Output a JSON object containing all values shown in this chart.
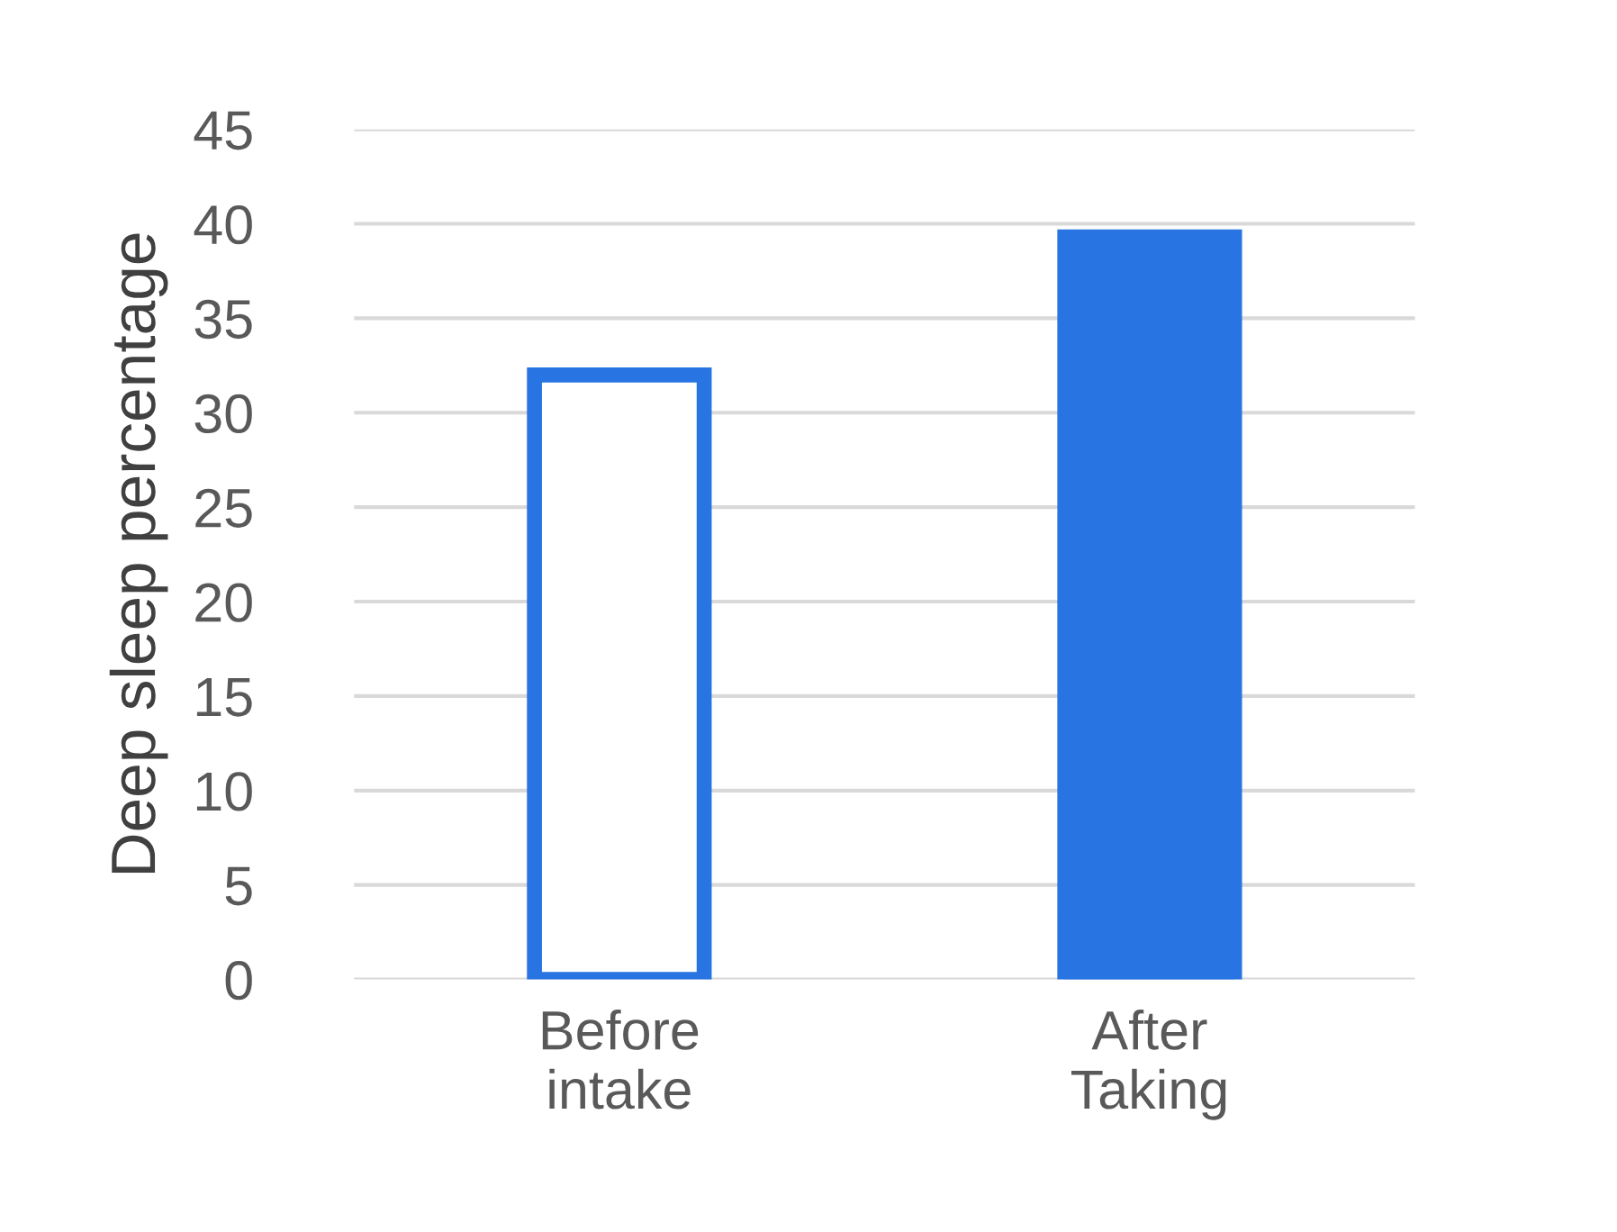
{
  "chart_data": {
    "type": "bar",
    "ylabel": "Deep sleep percentage",
    "categories": [
      "Before\nintake",
      "After\nTaking"
    ],
    "values": [
      32,
      39.3
    ],
    "color": "#2874e2",
    "colors": [
      "#ffffff",
      "#2874e2"
    ],
    "ylim": [
      0,
      45
    ],
    "yticks": [
      0,
      5,
      10,
      15,
      20,
      25,
      30,
      35,
      40,
      45
    ],
    "grid": "y"
  }
}
